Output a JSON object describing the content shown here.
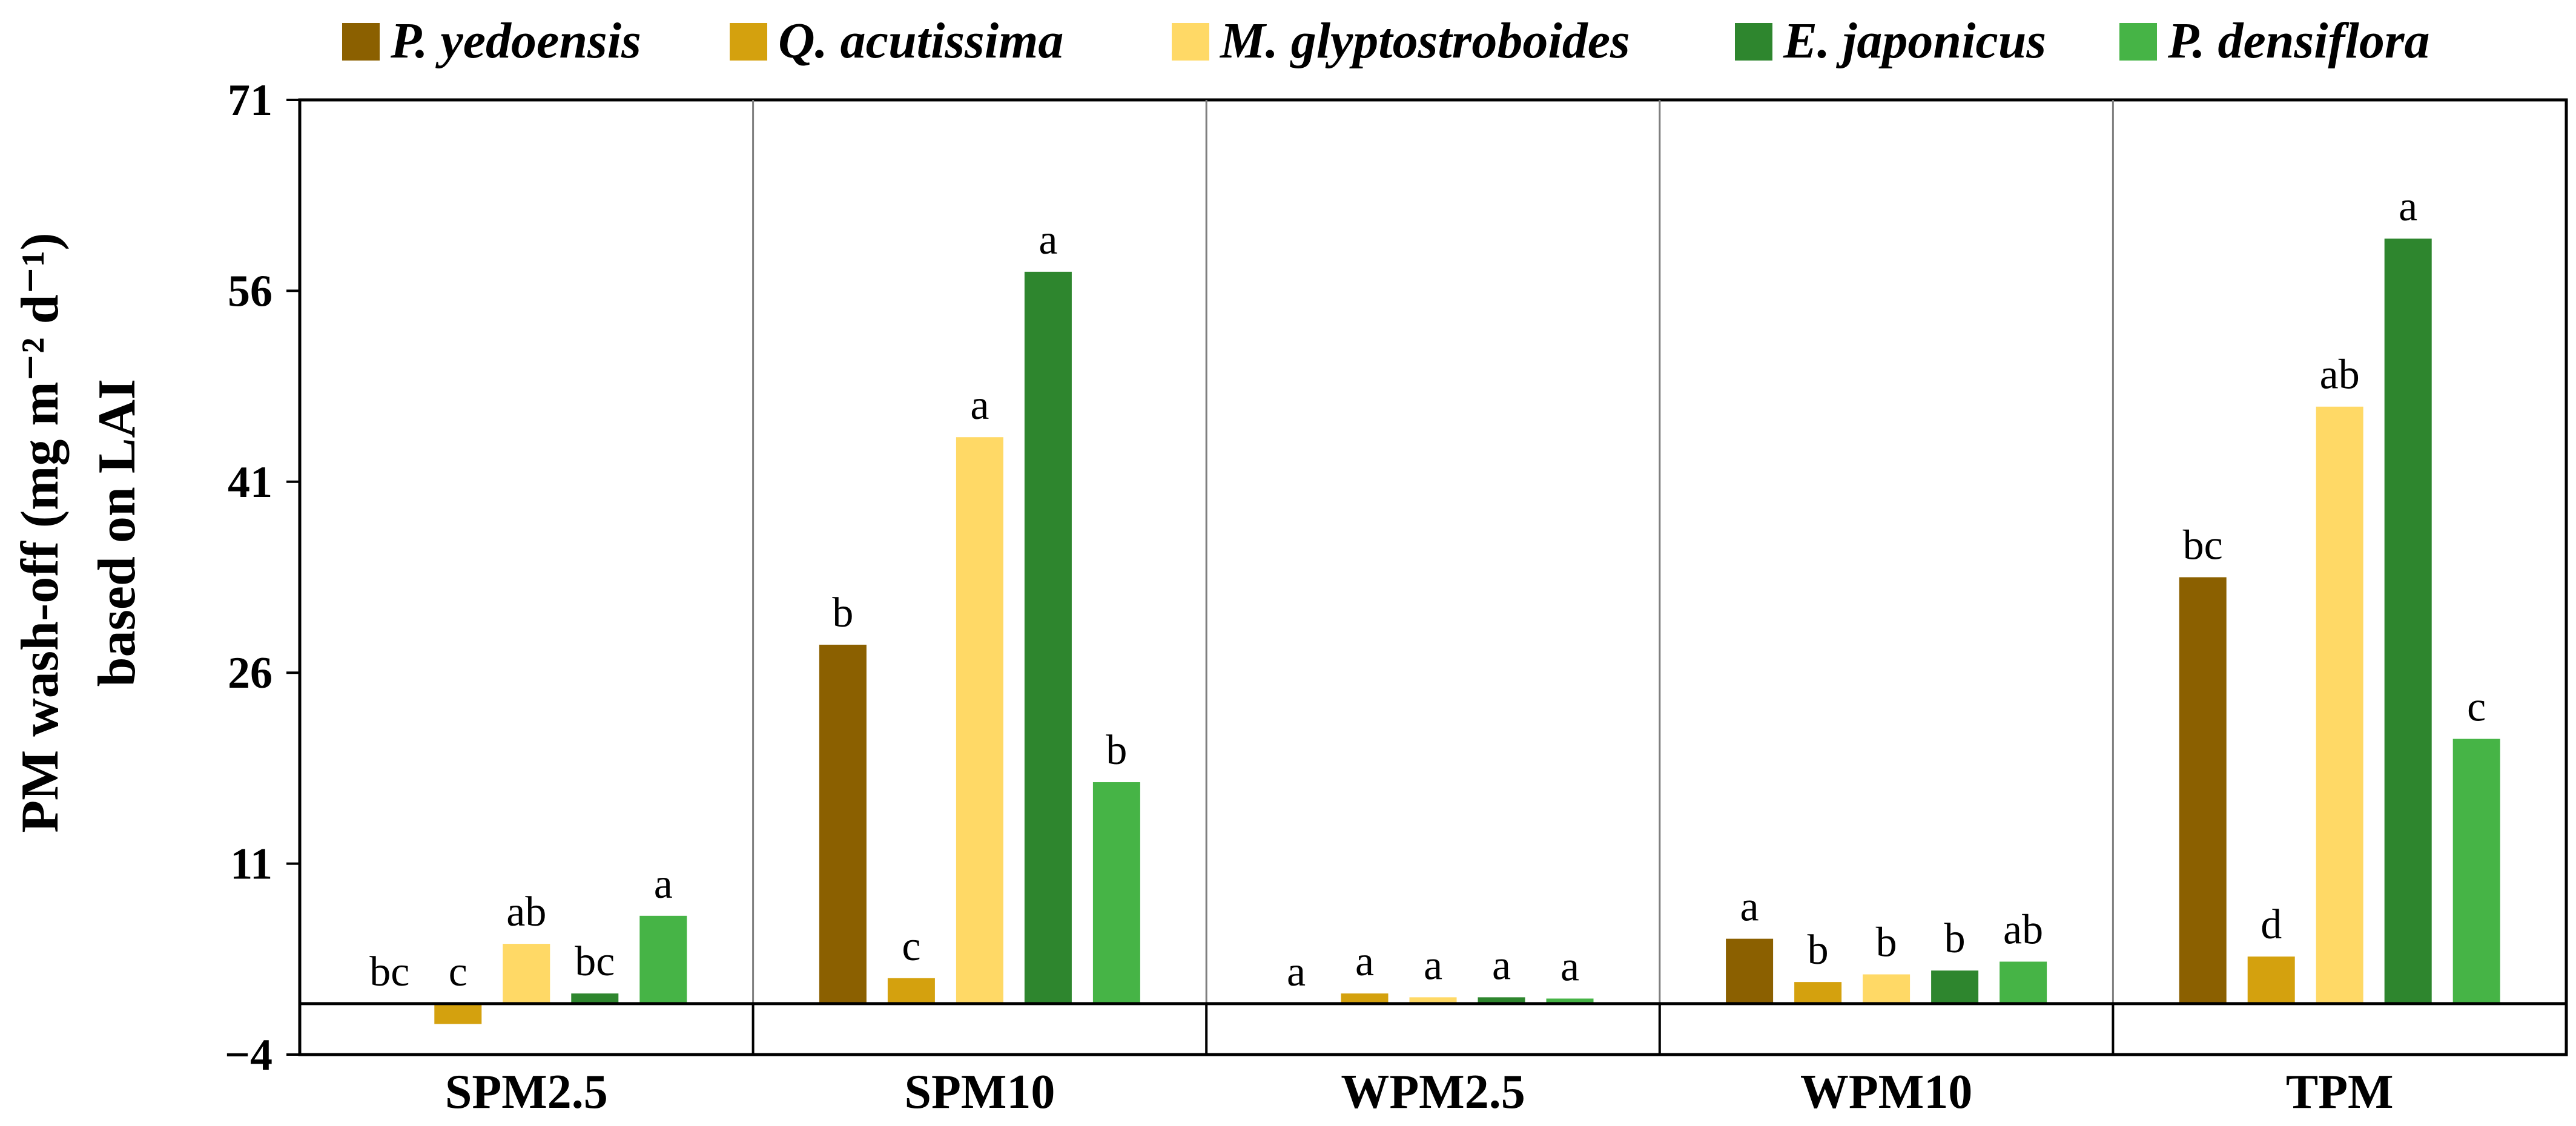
{
  "chart_data": {
    "type": "bar",
    "title": "",
    "xlabel": "",
    "ylabel_lines": [
      "PM wash-off (mg m⁻² d⁻¹)",
      "based on LAI"
    ],
    "ylim": [
      -4,
      71
    ],
    "yticks": [
      71,
      56,
      41,
      26,
      11,
      -4
    ],
    "ytick_labels": [
      "71",
      "56",
      "41",
      "26",
      "11",
      "−4"
    ],
    "categories": [
      "SPM2.5",
      "SPM10",
      "WPM2.5",
      "WPM10",
      "TPM"
    ],
    "legend_position": "top",
    "series": [
      {
        "name": "P. yedoensis",
        "color": "#8B6000",
        "values": [
          0.0,
          28.2,
          0.0,
          5.1,
          33.5
        ],
        "labels": [
          "bc",
          "b",
          "a",
          "a",
          "bc"
        ]
      },
      {
        "name": "Q. acutissima",
        "color": "#D4A10E",
        "values": [
          -1.6,
          2.0,
          0.8,
          1.7,
          3.7
        ],
        "labels": [
          "c",
          "c",
          "a",
          "b",
          "d"
        ]
      },
      {
        "name": "M. glyptostroboides",
        "color": "#FFD966",
        "values": [
          4.7,
          44.5,
          0.5,
          2.3,
          46.9
        ],
        "labels": [
          "ab",
          "a",
          "a",
          "b",
          "ab"
        ]
      },
      {
        "name": "E. japonicus",
        "color": "#2E862E",
        "values": [
          0.8,
          57.5,
          0.5,
          2.6,
          60.1
        ],
        "labels": [
          "bc",
          "a",
          "a",
          "b",
          "a"
        ]
      },
      {
        "name": "P. densiflora",
        "color": "#46B446",
        "values": [
          6.9,
          17.4,
          0.4,
          3.3,
          20.8
        ],
        "labels": [
          "a",
          "b",
          "a",
          "ab",
          "c"
        ]
      }
    ]
  }
}
